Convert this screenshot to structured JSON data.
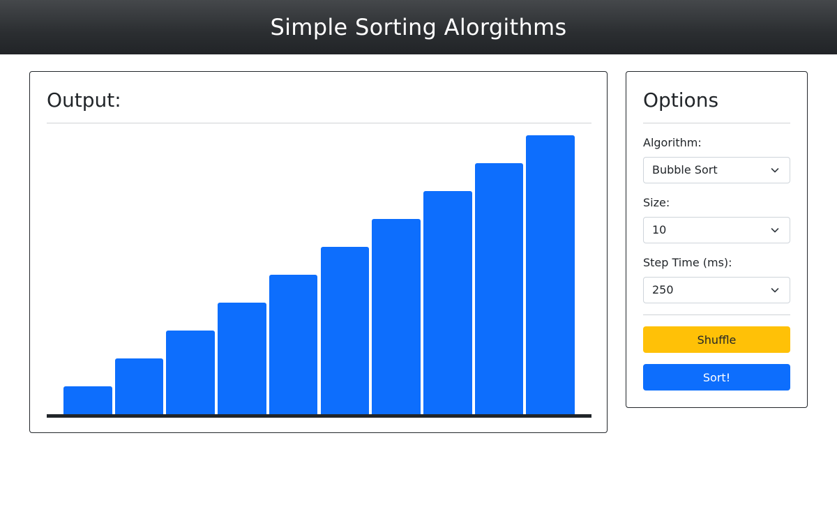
{
  "header": {
    "title": "Simple Sorting Alorgithms"
  },
  "output": {
    "title": "Output:"
  },
  "options": {
    "title": "Options",
    "algorithm": {
      "label": "Algorithm:",
      "value": "Bubble Sort"
    },
    "size": {
      "label": "Size:",
      "value": "10"
    },
    "step_time": {
      "label": "Step Time (ms):",
      "value": "250"
    },
    "shuffle_label": "Shuffle",
    "sort_label": "Sort!"
  },
  "chart_data": {
    "type": "bar",
    "values": [
      1,
      2,
      3,
      4,
      5,
      6,
      7,
      8,
      9,
      10
    ],
    "ylim": [
      0,
      10
    ],
    "bar_color": "#0d6efd",
    "grid": false
  },
  "colors": {
    "accent": "#0d6efd",
    "shuffle": "#ffc107",
    "header": "#212529"
  }
}
